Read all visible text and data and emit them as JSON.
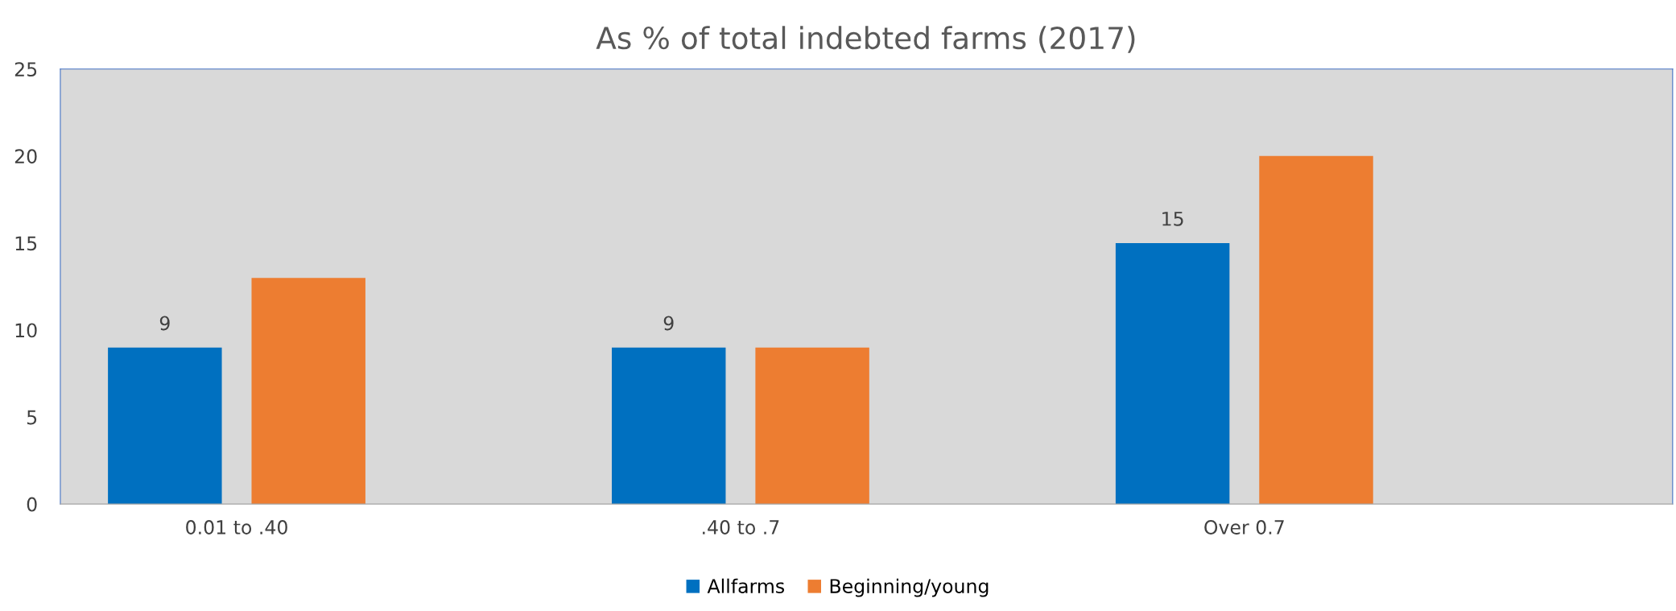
{
  "chart_data": {
    "type": "bar",
    "title": "As % of total indebted farms (2017)",
    "categories": [
      "0.01 to .40",
      ".40 to .7",
      "Over 0.7"
    ],
    "series": [
      {
        "name": "Allfarms",
        "color": "#0070c0",
        "values": [
          9,
          9,
          15
        ],
        "value_labels": [
          "9",
          "9",
          "15"
        ]
      },
      {
        "name": "Beginning/young",
        "color": "#ed7d31",
        "values": [
          13,
          9,
          20
        ]
      }
    ],
    "ylim": [
      0,
      25
    ],
    "yticks": [
      0,
      5,
      10,
      15,
      20,
      25
    ],
    "grid": false,
    "legend": "bottom"
  }
}
